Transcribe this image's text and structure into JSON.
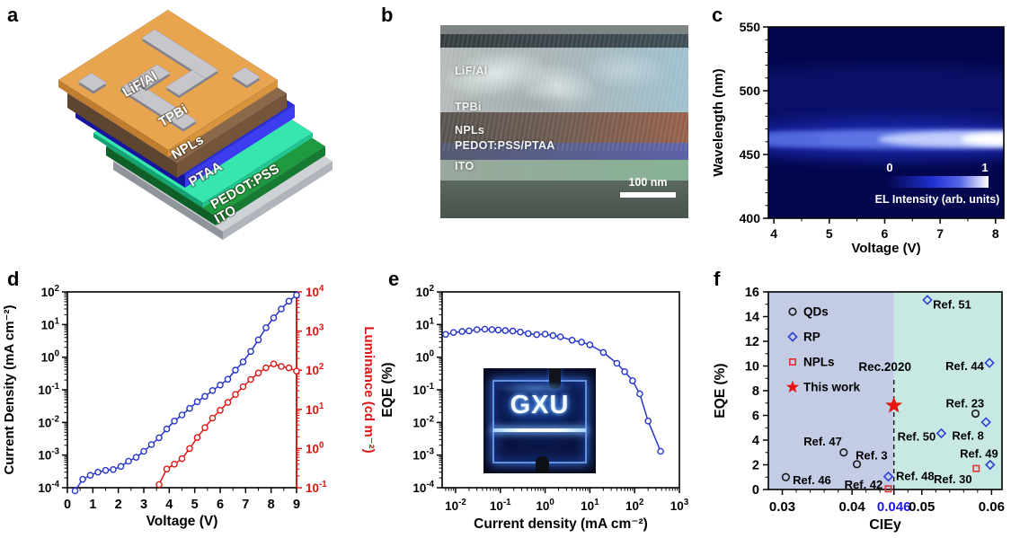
{
  "figure": {
    "panel_labels": {
      "a": "a",
      "b": "b",
      "c": "c",
      "d": "d",
      "e": "e",
      "f": "f"
    }
  },
  "panel_a": {
    "description": "3D exploded schematic of the LED device stack",
    "layers": [
      {
        "name": "electrode",
        "label": "LiF/Al",
        "top": "#e9a450",
        "left": "#bf7e2f",
        "right": "#d9943e",
        "electrode_top": "#c6c6cc",
        "electrode_side": "#83838b"
      },
      {
        "name": "tpbi",
        "label": "TPBi",
        "top": "#8a6849",
        "left": "#5e452f",
        "right": "#74553a"
      },
      {
        "name": "npls",
        "label": "NPLs",
        "top": "#2a2ad6",
        "left": "#16169c",
        "right": "#3c3cf0"
      },
      {
        "name": "ptaa",
        "label": "PTAA",
        "top": "#36e6ae",
        "left": "#13a377",
        "right": "#23c591"
      },
      {
        "name": "pedot",
        "label": "PEDOT:PSS",
        "top": "#1f9a40",
        "left": "#0f5f28",
        "right": "#177a33"
      },
      {
        "name": "ito",
        "label": "ITO",
        "top": "#ced1d6",
        "left": "#8f949b",
        "right": "#b0b5bc"
      }
    ]
  },
  "panel_b": {
    "description": "Cross-sectional SEM image with false-colored layers",
    "layer_labels": [
      "LiF/Al",
      "TPBi",
      "NPLs",
      "PEDOT:PSS/PTAA",
      "ITO"
    ],
    "layer_tints": [
      "#9fc0cd",
      "#96604c",
      "#5d62a8",
      "#86b295",
      "#49544c"
    ],
    "scale_bar_label": "100 nm"
  },
  "chart_data": [
    {
      "id": "c",
      "type": "heatmap",
      "xlabel": "Voltage (V)",
      "ylabel": "Wavelength (nm)",
      "xlim": [
        3.9,
        8.15
      ],
      "ylim": [
        400,
        550
      ],
      "xticks": [
        4,
        5,
        6,
        7,
        8
      ],
      "yticks": [
        400,
        450,
        500,
        550
      ],
      "emission_peak_nm": 462,
      "intensity_trend": "EL band centered near 462 nm, intensity grows with voltage, maximum at ~8 V",
      "colorbar": {
        "min_label": "0",
        "max_label": "1",
        "label": "EL Intensity (arb. units)"
      },
      "palette": {
        "background": "#04074d",
        "mid": "#2030d0",
        "high": "#ffffff"
      }
    },
    {
      "id": "d",
      "type": "line",
      "xlabel": "Voltage (V)",
      "ylabel_left": "Current Density  (mA cm⁻²)",
      "ylabel_right": "Luminance (cd m⁻²)",
      "xlim": [
        0,
        9
      ],
      "xticks": [
        0,
        1,
        2,
        3,
        4,
        5,
        6,
        7,
        8,
        9
      ],
      "ylim_left_exp": [
        -4,
        2
      ],
      "ylim_right_exp": [
        -1,
        4
      ],
      "series": [
        {
          "name": "Current density",
          "axis": "left",
          "color": "#2433cc",
          "x": [
            0.3,
            0.6,
            0.9,
            1.2,
            1.5,
            1.8,
            2.1,
            2.4,
            2.7,
            3.0,
            3.3,
            3.6,
            3.9,
            4.2,
            4.5,
            4.8,
            5.1,
            5.4,
            5.7,
            6.0,
            6.3,
            6.6,
            6.9,
            7.2,
            7.5,
            7.8,
            8.1,
            8.4,
            8.7,
            9.0
          ],
          "y": [
            8e-05,
            0.00018,
            0.00024,
            0.0003,
            0.00034,
            0.00036,
            0.00045,
            0.00065,
            0.00085,
            0.0013,
            0.0021,
            0.0034,
            0.0063,
            0.011,
            0.017,
            0.027,
            0.043,
            0.063,
            0.095,
            0.14,
            0.21,
            0.4,
            0.72,
            1.5,
            3.4,
            8.0,
            16,
            30,
            52,
            80
          ]
        },
        {
          "name": "Luminance",
          "axis": "right",
          "color": "#e01414",
          "x": [
            3.6,
            3.9,
            4.2,
            4.5,
            4.8,
            5.1,
            5.4,
            5.7,
            6.0,
            6.3,
            6.6,
            6.9,
            7.2,
            7.5,
            7.8,
            8.1,
            8.4,
            8.7,
            9.0
          ],
          "y": [
            0.12,
            0.3,
            0.4,
            0.55,
            1.0,
            1.9,
            3.4,
            6.0,
            9.5,
            15,
            24,
            38,
            58,
            85,
            115,
            145,
            125,
            115,
            95
          ]
        }
      ]
    },
    {
      "id": "e",
      "type": "line",
      "xlabel": "Current density (mA cm⁻²)",
      "ylabel": "EQE (%)",
      "xscale": "log",
      "yscale": "log",
      "xlim_exp": [
        -2.3,
        3
      ],
      "ylim_exp": [
        -4,
        2
      ],
      "xtick_exps": [
        -2,
        -1,
        0,
        1,
        2,
        3
      ],
      "ytick_exps": [
        -4,
        -3,
        -2,
        -1,
        0,
        1,
        2
      ],
      "series": [
        {
          "name": "EQE",
          "color": "#2433cc",
          "x": [
            0.006,
            0.009,
            0.014,
            0.02,
            0.03,
            0.045,
            0.065,
            0.09,
            0.13,
            0.19,
            0.28,
            0.42,
            0.65,
            1.0,
            1.5,
            2.2,
            4.0,
            6.5,
            10,
            20,
            40,
            60,
            90,
            130,
            200,
            380
          ],
          "y": [
            5.0,
            5.7,
            6.1,
            6.4,
            7.0,
            7.2,
            7.0,
            6.8,
            6.5,
            6.3,
            5.9,
            5.3,
            4.9,
            5.1,
            4.6,
            4.2,
            3.3,
            2.9,
            2.4,
            1.4,
            0.65,
            0.36,
            0.19,
            0.075,
            0.011,
            0.0013
          ]
        }
      ],
      "inset": {
        "label": "GXU",
        "description": "photograph of blue-emitting device"
      }
    },
    {
      "id": "f",
      "type": "scatter",
      "xlabel": "CIEy",
      "ylabel": "EQE (%)",
      "xlim": [
        0.028,
        0.0615
      ],
      "ylim": [
        0,
        16
      ],
      "xticks": [
        {
          "v": 0.03,
          "label": "0.03",
          "color": "#000000"
        },
        {
          "v": 0.04,
          "label": "0.04",
          "color": "#000000"
        },
        {
          "v": 0.046,
          "label": "0.046",
          "color": "#1a1aee"
        },
        {
          "v": 0.05,
          "label": "0.05",
          "color": "#000000"
        },
        {
          "v": 0.06,
          "label": "0.06",
          "color": "#000000"
        }
      ],
      "yticks": [
        0,
        2,
        4,
        6,
        8,
        10,
        12,
        14,
        16
      ],
      "regions": [
        {
          "x0": 0.028,
          "x1": 0.046,
          "color": "#c3cbe5"
        },
        {
          "x0": 0.046,
          "x1": 0.0615,
          "color": "#c8e9e3"
        }
      ],
      "vline": {
        "x": 0.046,
        "label": "Rec.2020",
        "top_y": 9.0,
        "label_y": 9.6
      },
      "legend": [
        {
          "label": "QDs",
          "marker": "circle",
          "color": "#1a1a1a"
        },
        {
          "label": "RP",
          "marker": "diamond",
          "color": "#2b3fd6"
        },
        {
          "label": "NPLs",
          "marker": "square",
          "color": "#e03434"
        },
        {
          "label": "This work",
          "marker": "star",
          "color": "#e8140f"
        }
      ],
      "points": [
        {
          "label": "Ref. 46",
          "marker": "circle",
          "x": 0.0305,
          "y": 1.0,
          "lx": 0.0315,
          "ly": 0.75,
          "anchor": "start"
        },
        {
          "label": "Ref. 47",
          "marker": "circle",
          "x": 0.0388,
          "y": 3.0,
          "lx": 0.0358,
          "ly": 3.9,
          "anchor": "middle"
        },
        {
          "label": "Ref. 3",
          "marker": "circle",
          "x": 0.0407,
          "y": 2.05,
          "lx": 0.0428,
          "ly": 2.75,
          "anchor": "middle"
        },
        {
          "label": "Ref. 23",
          "marker": "circle",
          "x": 0.0577,
          "y": 6.15,
          "lx": 0.0562,
          "ly": 7.0,
          "anchor": "middle"
        },
        {
          "label": "Ref. 51",
          "marker": "diamond",
          "x": 0.0508,
          "y": 15.35,
          "lx": 0.0516,
          "ly": 15.0,
          "anchor": "start"
        },
        {
          "label": "Ref. 44",
          "marker": "diamond",
          "x": 0.0597,
          "y": 10.25,
          "lx": 0.0589,
          "ly": 10.0,
          "anchor": "end"
        },
        {
          "label": "Ref. 8",
          "marker": "diamond",
          "x": 0.0592,
          "y": 5.45,
          "lx": 0.0589,
          "ly": 4.35,
          "anchor": "end"
        },
        {
          "label": "Ref. 50",
          "marker": "diamond",
          "x": 0.0528,
          "y": 4.55,
          "lx": 0.052,
          "ly": 4.3,
          "anchor": "end"
        },
        {
          "label": "Ref. 49",
          "marker": "diamond",
          "x": 0.0598,
          "y": 2.0,
          "lx": 0.0582,
          "ly": 2.9,
          "anchor": "middle"
        },
        {
          "label": "Ref. 48",
          "marker": "diamond",
          "x": 0.0452,
          "y": 1.05,
          "lx": 0.0463,
          "ly": 1.1,
          "anchor": "start"
        },
        {
          "label": "Ref. 42",
          "marker": "square",
          "x": 0.0452,
          "y": 0.05,
          "lx": 0.0444,
          "ly": 0.4,
          "anchor": "end"
        },
        {
          "label": "Ref. 30",
          "marker": "square",
          "x": 0.0578,
          "y": 1.7,
          "lx": 0.0572,
          "ly": 0.85,
          "anchor": "end"
        },
        {
          "label": "This work",
          "marker": "star",
          "x": 0.046,
          "y": 6.8
        }
      ]
    }
  ]
}
